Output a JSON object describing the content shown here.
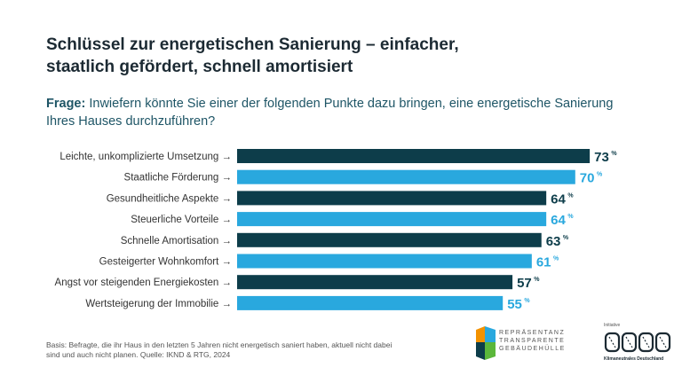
{
  "title_line1": "Schlüssel zur energetischen Sanierung – einfacher,",
  "title_line2": "staatlich gefördert, schnell amortisiert",
  "question_label": "Frage:",
  "question_text": " Inwiefern könnte Sie einer der folgenden Punkte dazu bringen, eine energetische Sanierung Ihres Hauses durchzuführen?",
  "footnote": "Basis: Befragte, die ihr Haus in den letzten 5 Jahren nicht energetisch saniert haben, aktuell nicht dabei sind und auch nicht planen. Quelle: IKND & RTG, 2024",
  "logo_repraesentanz": [
    "REPRÄSENTANZ",
    "TRANSPARENTE",
    "GEBÄUDEHÜLLE"
  ],
  "logo_initiative_top": "Initiative",
  "logo_initiative_bottom": "Klimaneutrales Deutschland",
  "colors": {
    "dark": "#0d3d4a",
    "light": "#29a8de",
    "text": "#333333"
  },
  "chart_data": {
    "type": "bar",
    "orientation": "horizontal",
    "categories": [
      "Leichte, unkomplizierte Umsetzung →",
      "Staatliche Förderung →",
      "Gesundheitliche Aspekte →",
      "Steuerliche Vorteile →",
      "Schnelle Amortisation →",
      "Gesteigerter Wohnkomfort →",
      "Angst vor steigenden Energiekosten →",
      "Wertsteigerung der Immobilie →"
    ],
    "values": [
      73,
      70,
      64,
      64,
      63,
      61,
      57,
      55
    ],
    "unit": "%",
    "bar_colors": [
      "dark",
      "light",
      "dark",
      "light",
      "dark",
      "light",
      "dark",
      "light"
    ]
  }
}
